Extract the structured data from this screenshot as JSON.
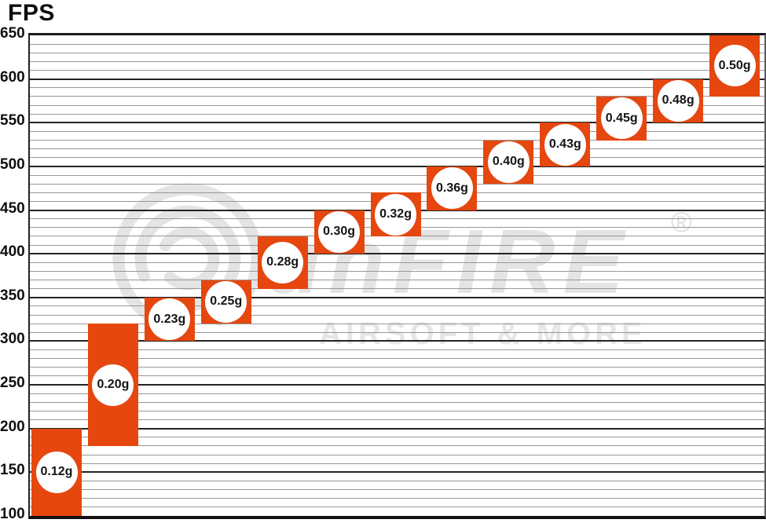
{
  "chart_data": {
    "type": "bar",
    "title": "FPS",
    "ylabel": "FPS",
    "ylim": [
      100,
      650
    ],
    "y_major_step": 50,
    "y_minor_step": 10,
    "y_ticks": [
      650,
      600,
      550,
      500,
      450,
      400,
      350,
      300,
      250,
      200,
      150,
      100
    ],
    "grid": true,
    "legend": "none",
    "bar_color": "#e5470f",
    "badge_color": "#ffffff",
    "categories": [
      "0.12g",
      "0.20g",
      "0.23g",
      "0.25g",
      "0.28g",
      "0.30g",
      "0.32g",
      "0.36g",
      "0.40g",
      "0.43g",
      "0.45g",
      "0.48g",
      "0.50g"
    ],
    "ranges": [
      {
        "label": "0.12g",
        "fps_min": 100,
        "fps_max": 200
      },
      {
        "label": "0.20g",
        "fps_min": 180,
        "fps_max": 320
      },
      {
        "label": "0.23g",
        "fps_min": 300,
        "fps_max": 350
      },
      {
        "label": "0.25g",
        "fps_min": 320,
        "fps_max": 370
      },
      {
        "label": "0.28g",
        "fps_min": 360,
        "fps_max": 420
      },
      {
        "label": "0.30g",
        "fps_min": 400,
        "fps_max": 450
      },
      {
        "label": "0.32g",
        "fps_min": 420,
        "fps_max": 470
      },
      {
        "label": "0.36g",
        "fps_min": 450,
        "fps_max": 500
      },
      {
        "label": "0.40g",
        "fps_min": 480,
        "fps_max": 530
      },
      {
        "label": "0.43g",
        "fps_min": 500,
        "fps_max": 550
      },
      {
        "label": "0.45g",
        "fps_min": 530,
        "fps_max": 580
      },
      {
        "label": "0.48g",
        "fps_min": 550,
        "fps_max": 600
      },
      {
        "label": "0.50g",
        "fps_min": 580,
        "fps_max": 650
      }
    ]
  },
  "watermark": {
    "wordmark": "unFIRE",
    "tagline": "AIRSOFT & MORE",
    "registered": "®",
    "color": "#e4e4e4"
  }
}
